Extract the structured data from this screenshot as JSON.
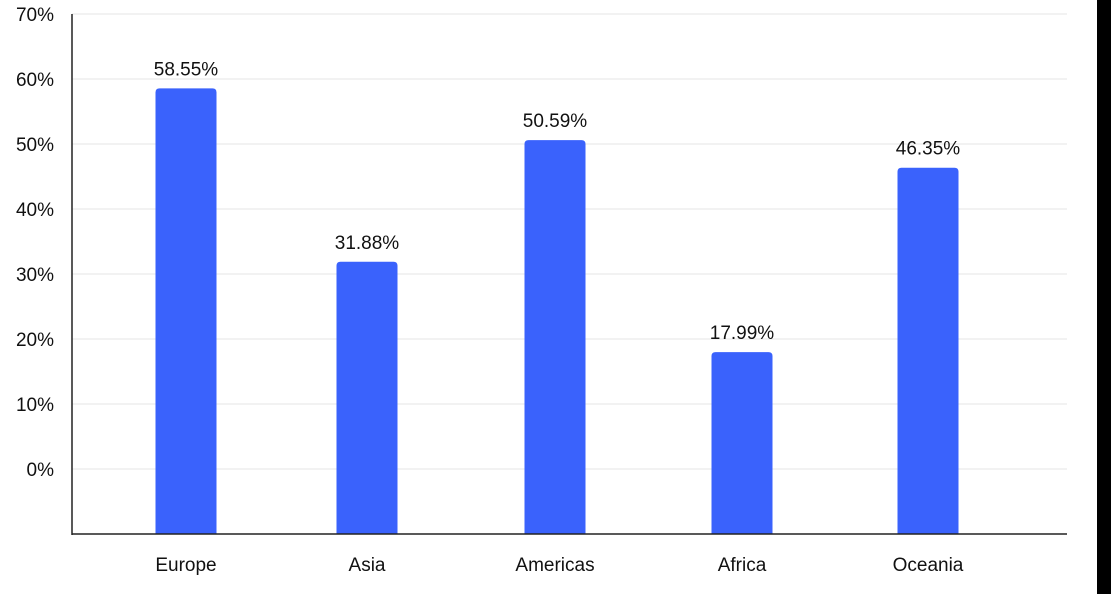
{
  "chart_data": {
    "type": "bar",
    "categories": [
      "Europe",
      "Asia",
      "Americas",
      "Africa",
      "Oceania"
    ],
    "values": [
      58.55,
      31.88,
      50.59,
      17.99,
      46.35
    ],
    "data_labels": [
      "58.55%",
      "31.88%",
      "50.59%",
      "17.99%",
      "46.35%"
    ],
    "y_ticks": [
      0,
      10,
      20,
      30,
      40,
      50,
      60,
      70
    ],
    "y_tick_labels": [
      "0%",
      "10%",
      "20%",
      "30%",
      "40%",
      "50%",
      "60%",
      "70%"
    ],
    "ylim": [
      0,
      70
    ],
    "title": "",
    "xlabel": "",
    "ylabel": "",
    "grid": true,
    "legend": "none",
    "bar_color": "#3a62fc",
    "grid_color": "#e6e6e6",
    "axis_color": "#222222"
  }
}
